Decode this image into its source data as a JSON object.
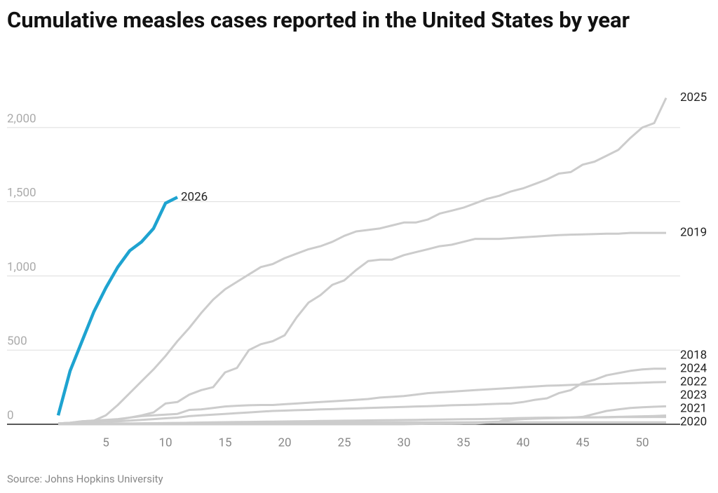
{
  "chart_data": {
    "type": "line",
    "title": "Cumulative measles cases reported in the United States by year",
    "source": "Source: Johns Hopkins University",
    "x": [
      1,
      2,
      3,
      4,
      5,
      6,
      7,
      8,
      9,
      10,
      11,
      12,
      13,
      14,
      15,
      16,
      17,
      18,
      19,
      20,
      21,
      22,
      23,
      24,
      25,
      26,
      27,
      28,
      29,
      30,
      31,
      32,
      33,
      34,
      35,
      36,
      37,
      38,
      39,
      40,
      41,
      42,
      43,
      44,
      45,
      46,
      47,
      48,
      49,
      50,
      51,
      52
    ],
    "xlim": [
      -3,
      52
    ],
    "xticks": [
      5,
      10,
      15,
      20,
      25,
      30,
      35,
      40,
      45,
      50
    ],
    "ylim": [
      0,
      2250
    ],
    "yticks": [
      0,
      500,
      {
        "value": 1000,
        "label": "1,000"
      },
      {
        "value": 1500,
        "label": "1,500"
      },
      {
        "value": 2000,
        "label": "2,000"
      }
    ],
    "grid": true,
    "series": [
      {
        "name": "2020",
        "color": "#cccccc",
        "values": [
          1,
          2,
          3,
          3,
          4,
          5,
          5,
          6,
          7,
          8,
          9,
          10,
          10,
          11,
          11,
          12,
          12,
          12,
          12,
          12,
          13,
          13,
          13,
          13,
          13,
          13,
          13,
          13,
          13,
          13,
          13,
          13,
          13,
          13,
          13,
          13,
          13,
          13,
          13,
          13,
          13,
          13,
          13,
          13,
          13,
          13,
          13,
          13,
          13,
          13,
          13,
          13
        ]
      },
      {
        "name": "2021",
        "color": "#cccccc",
        "values": [
          0,
          1,
          1,
          1,
          2,
          2,
          2,
          3,
          3,
          3,
          4,
          4,
          4,
          5,
          5,
          5,
          5,
          6,
          6,
          6,
          6,
          7,
          7,
          7,
          8,
          8,
          8,
          9,
          9,
          9,
          10,
          10,
          10,
          11,
          12,
          13,
          15,
          18,
          40,
          42,
          44,
          45,
          45,
          46,
          46,
          47,
          47,
          48,
          48,
          48,
          49,
          49
        ]
      },
      {
        "name": "2022",
        "color": "#cccccc",
        "values": [
          0,
          0,
          0,
          0,
          0,
          0,
          0,
          0,
          0,
          0,
          0,
          0,
          0,
          0,
          0,
          0,
          0,
          0,
          0,
          0,
          0,
          0,
          0,
          0,
          0,
          0,
          0,
          0,
          0,
          0,
          2,
          3,
          3,
          4,
          5,
          5,
          10,
          15,
          30,
          35,
          38,
          40,
          42,
          45,
          50,
          70,
          90,
          100,
          110,
          115,
          118,
          121
        ]
      },
      {
        "name": "2023",
        "color": "#cccccc",
        "values": [
          1,
          2,
          3,
          3,
          4,
          5,
          5,
          6,
          6,
          7,
          8,
          10,
          12,
          13,
          14,
          15,
          16,
          17,
          18,
          19,
          20,
          21,
          22,
          23,
          24,
          25,
          26,
          27,
          28,
          29,
          30,
          31,
          32,
          33,
          34,
          35,
          36,
          38,
          40,
          41,
          42,
          43,
          44,
          45,
          46,
          47,
          48,
          50,
          52,
          54,
          56,
          59
        ]
      },
      {
        "name": "2024",
        "color": "#cccccc",
        "values": [
          5,
          10,
          20,
          25,
          30,
          35,
          45,
          55,
          60,
          65,
          70,
          97,
          100,
          110,
          120,
          125,
          128,
          130,
          130,
          135,
          140,
          145,
          150,
          155,
          160,
          165,
          170,
          180,
          185,
          190,
          200,
          210,
          215,
          220,
          225,
          230,
          235,
          240,
          245,
          250,
          255,
          260,
          262,
          265,
          268,
          270,
          272,
          275,
          277,
          280,
          283,
          285
        ]
      },
      {
        "name": "2018",
        "color": "#cccccc",
        "values": [
          5,
          8,
          12,
          15,
          18,
          20,
          25,
          30,
          35,
          40,
          45,
          55,
          60,
          65,
          70,
          75,
          80,
          85,
          90,
          92,
          95,
          97,
          100,
          102,
          105,
          107,
          110,
          112,
          115,
          117,
          120,
          122,
          125,
          128,
          130,
          132,
          135,
          138,
          140,
          150,
          165,
          175,
          210,
          230,
          280,
          300,
          330,
          345,
          360,
          370,
          375,
          375
        ]
      },
      {
        "name": "2019",
        "color": "#cccccc",
        "values": [
          5,
          10,
          15,
          20,
          25,
          30,
          45,
          60,
          80,
          140,
          150,
          200,
          230,
          250,
          350,
          380,
          500,
          540,
          560,
          600,
          720,
          820,
          870,
          940,
          970,
          1040,
          1100,
          1110,
          1110,
          1140,
          1160,
          1180,
          1200,
          1210,
          1230,
          1250,
          1250,
          1250,
          1255,
          1260,
          1265,
          1270,
          1275,
          1278,
          1280,
          1282,
          1285,
          1285,
          1290,
          1290,
          1290,
          1290
        ]
      },
      {
        "name": "2025",
        "color": "#cccccc",
        "values": [
          5,
          10,
          20,
          25,
          60,
          130,
          210,
          290,
          370,
          460,
          560,
          650,
          750,
          840,
          910,
          960,
          1010,
          1060,
          1080,
          1120,
          1150,
          1180,
          1200,
          1230,
          1270,
          1300,
          1310,
          1320,
          1340,
          1360,
          1360,
          1380,
          1420,
          1440,
          1460,
          1490,
          1520,
          1540,
          1570,
          1590,
          1620,
          1650,
          1690,
          1700,
          1750,
          1770,
          1810,
          1850,
          1930,
          2000,
          2030,
          2200
        ]
      },
      {
        "name": "2026",
        "color": "#1ea3d0",
        "values": [
          60,
          360,
          560,
          760,
          920,
          1060,
          1170,
          1230,
          1320,
          1490,
          1530,
          null,
          null,
          null,
          null,
          null,
          null,
          null,
          null,
          null,
          null,
          null,
          null,
          null,
          null,
          null,
          null,
          null,
          null,
          null,
          null,
          null,
          null,
          null,
          null,
          null,
          null,
          null,
          null,
          null,
          null,
          null,
          null,
          null,
          null,
          null,
          null,
          null,
          null,
          null,
          null,
          null
        ]
      }
    ]
  }
}
